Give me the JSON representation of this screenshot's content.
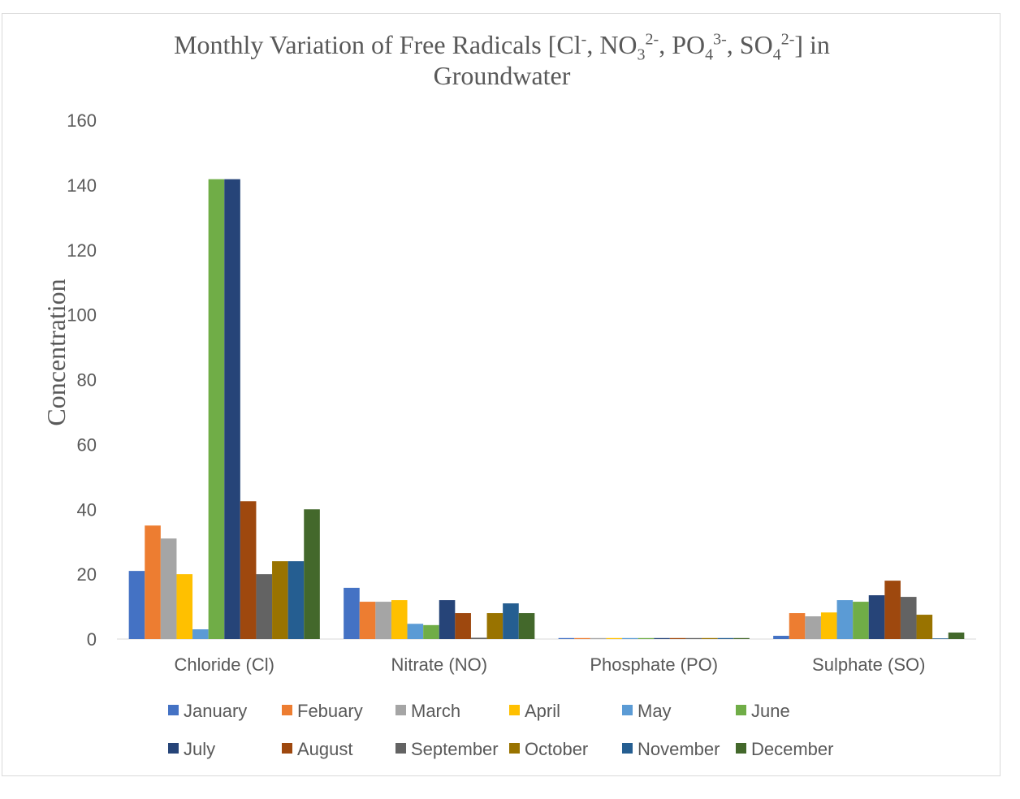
{
  "chart_data": {
    "type": "bar",
    "title": {
      "line1_parts": [
        {
          "t": "Monthly Variation of Free Radicals [Cl",
          "s": ""
        },
        {
          "t": "-",
          "s": "sup"
        },
        {
          "t": ", NO",
          "s": ""
        },
        {
          "t": "3",
          "s": "sub"
        },
        {
          "t": "2-",
          "s": "sup"
        },
        {
          "t": ", PO",
          "s": ""
        },
        {
          "t": "4",
          "s": "sub"
        },
        {
          "t": "3-",
          "s": "sup"
        },
        {
          "t": ", SO",
          "s": ""
        },
        {
          "t": "4",
          "s": "sub"
        },
        {
          "t": "2-",
          "s": "sup"
        },
        {
          "t": "] in",
          "s": ""
        }
      ],
      "line2": "Groundwater"
    },
    "ylabel": "Concentration",
    "xlabel": "",
    "ylim": [
      0,
      160
    ],
    "yticks": [
      0,
      20,
      40,
      60,
      80,
      100,
      120,
      140,
      160
    ],
    "grid": false,
    "legend_position": "bottom",
    "categories": [
      "Chloride (Cl)",
      "Nitrate (NO)",
      "Phosphate (PO)",
      "Sulphate (SO)"
    ],
    "series": [
      {
        "name": "January",
        "color": "#4472C4",
        "values": [
          21,
          15.8,
          0.3,
          1
        ]
      },
      {
        "name": "Febuary",
        "color": "#ED7D31",
        "values": [
          35,
          11.5,
          0.3,
          8
        ]
      },
      {
        "name": "March",
        "color": "#A5A5A5",
        "values": [
          31,
          11.5,
          0.3,
          7
        ]
      },
      {
        "name": "April",
        "color": "#FFC000",
        "values": [
          20,
          12,
          0.3,
          8.2
        ]
      },
      {
        "name": "May",
        "color": "#5B9BD5",
        "values": [
          3,
          4.7,
          0.3,
          12
        ]
      },
      {
        "name": "June",
        "color": "#70AD47",
        "values": [
          141.8,
          4.3,
          0.3,
          11.5
        ]
      },
      {
        "name": "July",
        "color": "#264478",
        "values": [
          141.8,
          12,
          0.3,
          13.5
        ]
      },
      {
        "name": "August",
        "color": "#9E480E",
        "values": [
          42.5,
          8,
          0.3,
          18
        ]
      },
      {
        "name": "September",
        "color": "#636363",
        "values": [
          20,
          0.4,
          0.3,
          13
        ]
      },
      {
        "name": "October",
        "color": "#997300",
        "values": [
          24,
          8,
          0.3,
          7.5
        ]
      },
      {
        "name": "November",
        "color": "#255E91",
        "values": [
          24,
          11,
          0.3,
          0.2
        ]
      },
      {
        "name": "December",
        "color": "#43682B",
        "values": [
          40,
          8,
          0.3,
          2
        ]
      }
    ]
  }
}
